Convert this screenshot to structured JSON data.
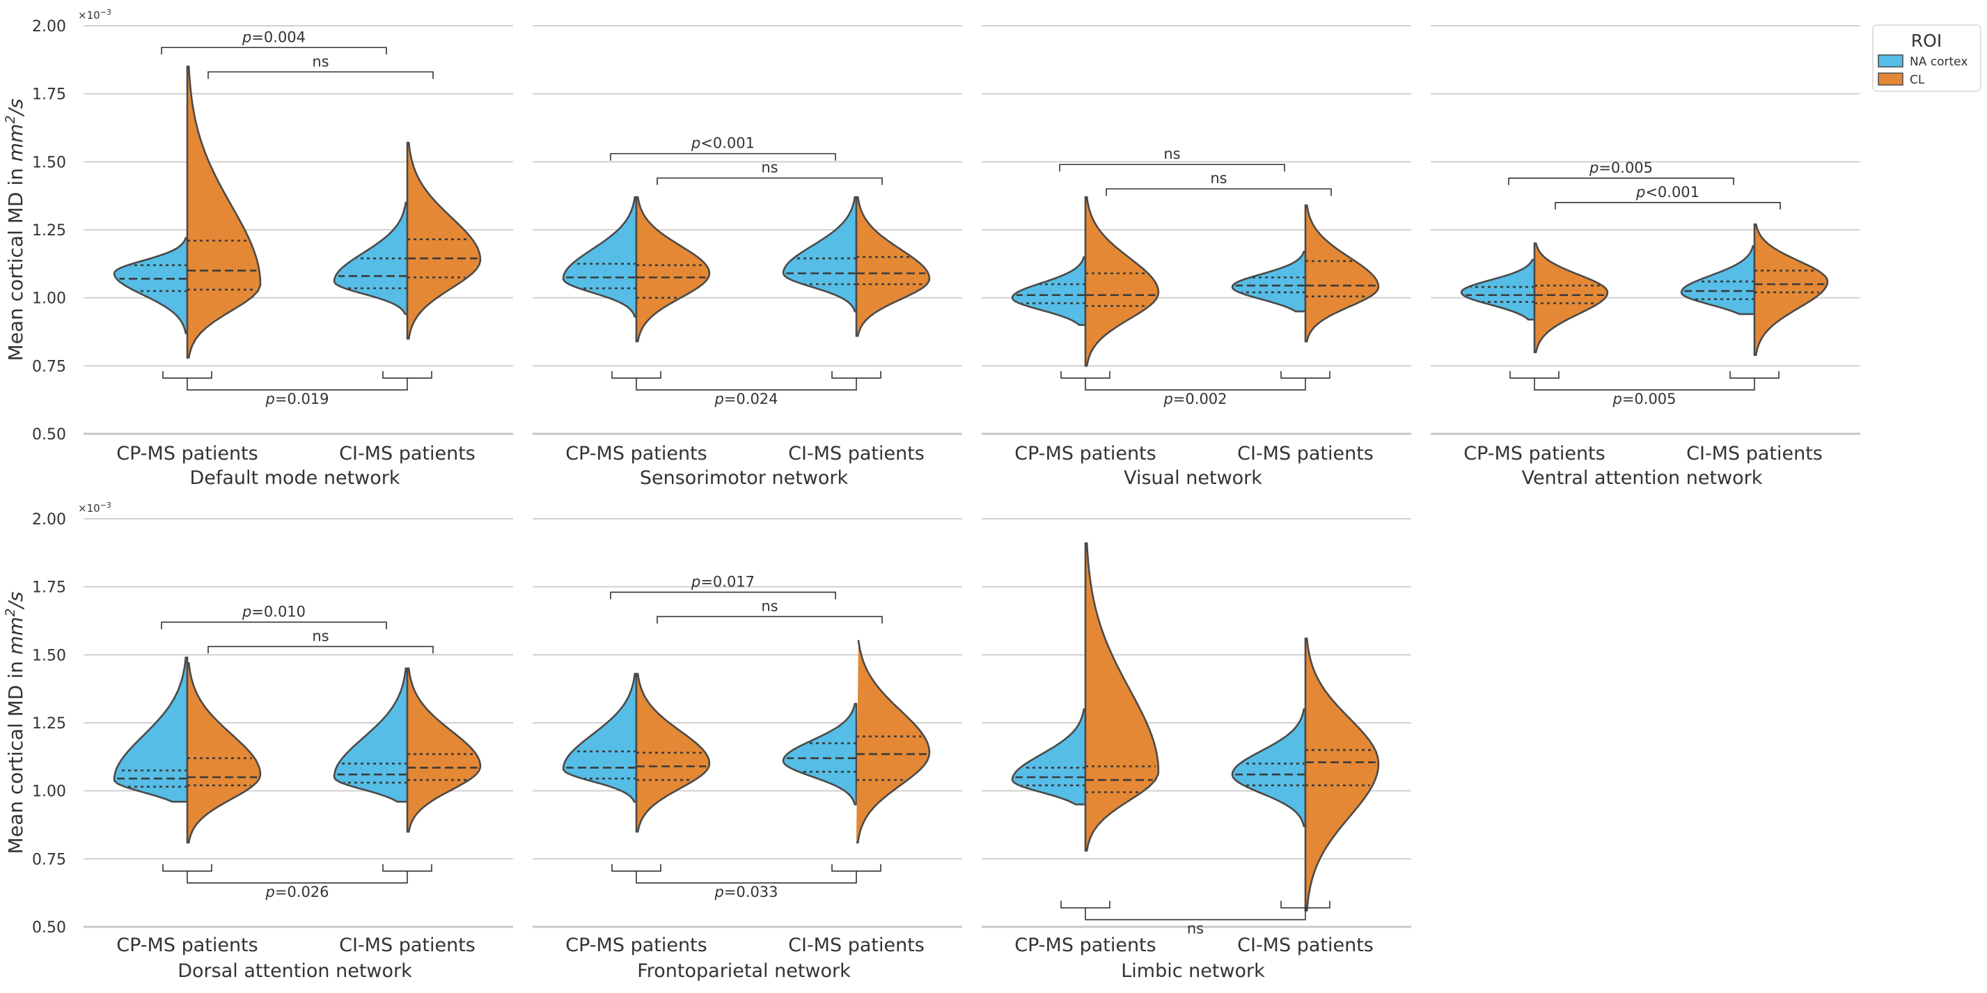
{
  "legend": {
    "title": "ROI",
    "items": [
      {
        "label": "NA cortex",
        "color": "#55bde6"
      },
      {
        "label": "CL",
        "color": "#e48835"
      }
    ]
  },
  "colors": {
    "na": "#55bde6",
    "cl": "#e48835"
  },
  "ylabel": "Mean cortical MD in mm²/s",
  "ylabel_parts": {
    "main": "Mean cortical MD in ",
    "unit": "mm",
    "sup": "2",
    "tail": "/s"
  },
  "scale_label": {
    "base": "×10",
    "exp": "−3"
  },
  "chart_data": [
    {
      "type": "violin",
      "title": "Default mode network",
      "categories": [
        "CP-MS patients",
        "CI-MS patients"
      ],
      "ylim": [
        0.5,
        2.0
      ],
      "yticks": [
        "0.50",
        "0.75",
        "1.00",
        "1.25",
        "1.50",
        "1.75",
        "2.00"
      ],
      "groups": [
        {
          "na": {
            "min": 0.87,
            "max": 1.22,
            "mode": 1.09,
            "quartiles": [
              1.025,
              1.07,
              1.12
            ]
          },
          "cl": {
            "min": 0.78,
            "max": 1.85,
            "mode": 1.05,
            "quartiles": [
              1.03,
              1.1,
              1.21
            ]
          }
        },
        {
          "na": {
            "min": 0.94,
            "max": 1.35,
            "mode": 1.06,
            "quartiles": [
              1.035,
              1.08,
              1.145
            ]
          },
          "cl": {
            "min": 0.85,
            "max": 1.57,
            "mode": 1.14,
            "quartiles": [
              1.075,
              1.145,
              1.215
            ]
          }
        }
      ],
      "comparisons": {
        "top_outer": "p=0.004",
        "top_inner": "ns",
        "bottom": "p=0.019"
      }
    },
    {
      "type": "violin",
      "title": "Sensorimotor network",
      "categories": [
        "CP-MS patients",
        "CI-MS patients"
      ],
      "ylim": [
        0.5,
        2.0
      ],
      "yticks": [
        "0.50",
        "0.75",
        "1.00",
        "1.25",
        "1.50",
        "1.75",
        "2.00"
      ],
      "groups": [
        {
          "na": {
            "min": 0.93,
            "max": 1.37,
            "mode": 1.07,
            "quartiles": [
              1.035,
              1.075,
              1.125
            ]
          },
          "cl": {
            "min": 0.84,
            "max": 1.37,
            "mode": 1.09,
            "quartiles": [
              1.0,
              1.075,
              1.12
            ]
          }
        },
        {
          "na": {
            "min": 0.95,
            "max": 1.37,
            "mode": 1.09,
            "quartiles": [
              1.05,
              1.09,
              1.145
            ]
          },
          "cl": {
            "min": 0.86,
            "max": 1.37,
            "mode": 1.07,
            "quartiles": [
              1.05,
              1.09,
              1.15
            ]
          }
        }
      ],
      "comparisons": {
        "top_outer": "p<0.001",
        "top_inner": "ns",
        "bottom": "p=0.024"
      }
    },
    {
      "type": "violin",
      "title": "Visual network",
      "categories": [
        "CP-MS patients",
        "CI-MS patients"
      ],
      "ylim": [
        0.5,
        2.0
      ],
      "yticks": [
        "0.50",
        "0.75",
        "1.00",
        "1.25",
        "1.50",
        "1.75",
        "2.00"
      ],
      "groups": [
        {
          "na": {
            "min": 0.9,
            "max": 1.15,
            "mode": 1.0,
            "quartiles": [
              0.98,
              1.01,
              1.05
            ]
          },
          "cl": {
            "min": 0.75,
            "max": 1.37,
            "mode": 1.02,
            "quartiles": [
              0.97,
              1.01,
              1.09
            ]
          }
        },
        {
          "na": {
            "min": 0.95,
            "max": 1.17,
            "mode": 1.04,
            "quartiles": [
              1.02,
              1.045,
              1.075
            ]
          },
          "cl": {
            "min": 0.84,
            "max": 1.34,
            "mode": 1.04,
            "quartiles": [
              1.005,
              1.045,
              1.135
            ]
          }
        }
      ],
      "comparisons": {
        "top_outer": "ns",
        "top_inner": "ns",
        "bottom": "p=0.002"
      }
    },
    {
      "type": "violin",
      "title": "Ventral attention network",
      "categories": [
        "CP-MS patients",
        "CI-MS patients"
      ],
      "ylim": [
        0.5,
        2.0
      ],
      "yticks": [
        "0.50",
        "0.75",
        "1.00",
        "1.25",
        "1.50",
        "1.75",
        "2.00"
      ],
      "groups": [
        {
          "na": {
            "min": 0.92,
            "max": 1.14,
            "mode": 1.02,
            "quartiles": [
              0.985,
              1.01,
              1.04
            ]
          },
          "cl": {
            "min": 0.8,
            "max": 1.2,
            "mode": 1.02,
            "quartiles": [
              0.98,
              1.01,
              1.045
            ]
          }
        },
        {
          "na": {
            "min": 0.94,
            "max": 1.19,
            "mode": 1.02,
            "quartiles": [
              0.995,
              1.025,
              1.06
            ]
          },
          "cl": {
            "min": 0.79,
            "max": 1.27,
            "mode": 1.06,
            "quartiles": [
              1.02,
              1.05,
              1.1
            ]
          }
        }
      ],
      "comparisons": {
        "top_outer": "p=0.005",
        "top_inner": "p<0.001",
        "bottom": "p=0.005"
      }
    },
    {
      "type": "violin",
      "title": "Dorsal attention network",
      "categories": [
        "CP-MS patients",
        "CI-MS patients"
      ],
      "ylim": [
        0.5,
        2.0
      ],
      "yticks": [
        "0.50",
        "0.75",
        "1.00",
        "1.25",
        "1.50",
        "1.75",
        "2.00"
      ],
      "groups": [
        {
          "na": {
            "min": 0.96,
            "max": 1.49,
            "mode": 1.04,
            "quartiles": [
              1.015,
              1.045,
              1.075
            ]
          },
          "cl": {
            "min": 0.81,
            "max": 1.47,
            "mode": 1.06,
            "quartiles": [
              1.02,
              1.05,
              1.12
            ]
          }
        },
        {
          "na": {
            "min": 0.96,
            "max": 1.45,
            "mode": 1.05,
            "quartiles": [
              1.03,
              1.06,
              1.1
            ]
          },
          "cl": {
            "min": 0.85,
            "max": 1.45,
            "mode": 1.09,
            "quartiles": [
              1.04,
              1.085,
              1.135
            ]
          }
        }
      ],
      "comparisons": {
        "top_outer": "p=0.010",
        "top_inner": "ns",
        "bottom": "p=0.026"
      }
    },
    {
      "type": "violin",
      "title": "Frontoparietal network",
      "categories": [
        "CP-MS patients",
        "CI-MS patients"
      ],
      "ylim": [
        0.5,
        2.0
      ],
      "yticks": [
        "0.50",
        "0.75",
        "1.00",
        "1.25",
        "1.50",
        "1.75",
        "2.00"
      ],
      "groups": [
        {
          "na": {
            "min": 0.96,
            "max": 1.43,
            "mode": 1.08,
            "quartiles": [
              1.045,
              1.085,
              1.145
            ]
          },
          "cl": {
            "min": 0.85,
            "max": 1.43,
            "mode": 1.1,
            "quartiles": [
              1.04,
              1.09,
              1.14
            ]
          }
        },
        {
          "na": {
            "min": 0.95,
            "max": 1.32,
            "mode": 1.11,
            "quartiles": [
              1.07,
              1.12,
              1.175
            ]
          },
          "cl": {
            "min": 0.81,
            "max": 1.57,
            "mode": 1.14,
            "quartiles": [
              1.04,
              1.135,
              1.2
            ]
          }
        }
      ],
      "comparisons": {
        "top_outer": "p=0.017",
        "top_inner": "ns",
        "bottom": "p=0.033"
      }
    },
    {
      "type": "violin",
      "title": "Limbic network",
      "categories": [
        "CP-MS patients",
        "CI-MS patients"
      ],
      "ylim": [
        0.5,
        2.0
      ],
      "yticks": [
        "0.50",
        "0.75",
        "1.00",
        "1.25",
        "1.50",
        "1.75",
        "2.00"
      ],
      "groups": [
        {
          "na": {
            "min": 0.95,
            "max": 1.3,
            "mode": 1.04,
            "quartiles": [
              1.02,
              1.05,
              1.085
            ]
          },
          "cl": {
            "min": 0.78,
            "max": 1.91,
            "mode": 1.07,
            "quartiles": [
              0.995,
              1.04,
              1.09
            ]
          }
        },
        {
          "na": {
            "min": 0.87,
            "max": 1.3,
            "mode": 1.06,
            "quartiles": [
              1.02,
              1.06,
              1.1
            ]
          },
          "cl": {
            "min": 0.56,
            "max": 1.56,
            "mode": 1.1,
            "quartiles": [
              1.02,
              1.105,
              1.15
            ]
          }
        }
      ],
      "comparisons": {
        "top_outer": "",
        "top_inner": "",
        "bottom": "ns"
      }
    }
  ]
}
